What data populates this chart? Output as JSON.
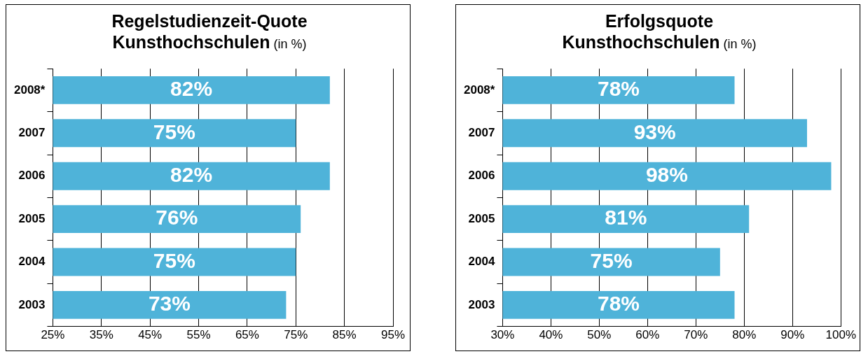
{
  "chart_data": [
    {
      "type": "bar",
      "orientation": "horizontal",
      "title": "Regelstudienzeit-Quote Kunsthochschulen",
      "subtitle": "(in %)",
      "categories": [
        "2008*",
        "2007",
        "2006",
        "2005",
        "2004",
        "2003"
      ],
      "values": [
        82,
        75,
        82,
        76,
        75,
        73
      ],
      "color": "#4fb3d9",
      "xlim": [
        25,
        95
      ],
      "xticks": [
        {
          "value": 25,
          "label": "25%"
        },
        {
          "value": 35,
          "label": "35%"
        },
        {
          "value": 45,
          "label": "45%"
        },
        {
          "value": 55,
          "label": "55%"
        },
        {
          "value": 65,
          "label": "65%"
        },
        {
          "value": 75,
          "label": "75%"
        },
        {
          "value": 85,
          "label": "85%"
        },
        {
          "value": 95,
          "label": "95%"
        }
      ],
      "grid": "x",
      "data_labels": true,
      "value_labels": [
        "82%",
        "75%",
        "82%",
        "76%",
        "75%",
        "73%"
      ],
      "legend": false
    },
    {
      "type": "bar",
      "orientation": "horizontal",
      "title": "Erfolgsquote Kunsthochschulen",
      "subtitle": "(in %)",
      "categories": [
        "2008*",
        "2007",
        "2006",
        "2005",
        "2004",
        "2003"
      ],
      "values": [
        78,
        93,
        98,
        81,
        75,
        78
      ],
      "color": "#4fb3d9",
      "xlim": [
        30,
        100
      ],
      "xticks": [
        {
          "value": 30,
          "label": "30%"
        },
        {
          "value": 40,
          "label": "40%"
        },
        {
          "value": 50,
          "label": "50%"
        },
        {
          "value": 60,
          "label": "60%"
        },
        {
          "value": 70,
          "label": "70%"
        },
        {
          "value": 80,
          "label": "80%"
        },
        {
          "value": 90,
          "label": "90%"
        },
        {
          "value": 100,
          "label": "100%"
        }
      ],
      "grid": "x",
      "data_labels": true,
      "value_labels": [
        "78%",
        "93%",
        "98%",
        "81%",
        "75%",
        "78%"
      ],
      "legend": false
    }
  ]
}
